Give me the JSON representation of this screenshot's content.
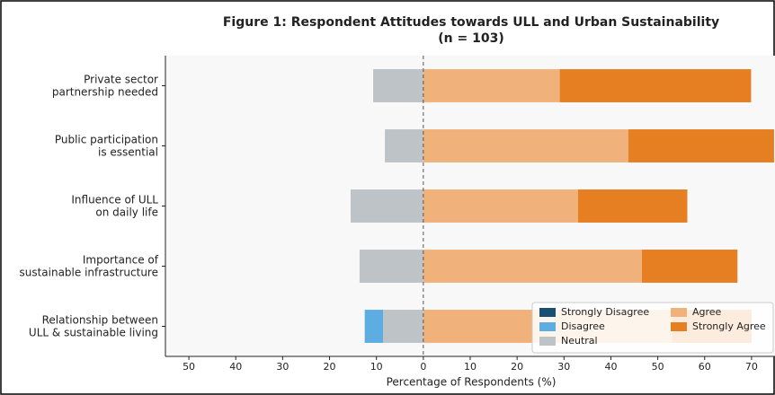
{
  "chart_data": {
    "type": "diverging_bar",
    "title": "Figure 1: Respondent Attitudes towards ULL and Urban Sustainability",
    "subtitle": "(n = 103)",
    "x_label": "Percentage of Respondents (%)",
    "categories": [
      [
        "Private sector",
        "partnership needed"
      ],
      [
        "Public participation",
        "is essential"
      ],
      [
        "Influence of ULL",
        "on daily life"
      ],
      [
        "Importance of",
        "sustainable infrastructure"
      ],
      [
        "Relationship between",
        "ULL & sustainable living"
      ]
    ],
    "series": [
      {
        "name": "Strongly Disagree",
        "color": "#1b4f72",
        "side": "left",
        "values": [
          0,
          0,
          0,
          0,
          0
        ]
      },
      {
        "name": "Disagree",
        "color": "#5dade2",
        "side": "left",
        "values": [
          0,
          0,
          0,
          0,
          3.9
        ]
      },
      {
        "name": "Neutral",
        "color": "#bdc3c7",
        "side": "left",
        "values": [
          10.7,
          8.2,
          15.5,
          13.6,
          8.6
        ]
      },
      {
        "name": "Agree",
        "color": "#f0b27a",
        "side": "right",
        "values": [
          29.1,
          43.7,
          33,
          46.6,
          53
        ]
      },
      {
        "name": "Strongly Agree",
        "color": "#e67e22",
        "side": "right",
        "values": [
          40.8,
          31.1,
          23.3,
          20.4,
          17
        ]
      }
    ],
    "xlim": [
      -55,
      75
    ],
    "xticks": [
      {
        "value": -50,
        "label": "50"
      },
      {
        "value": -40,
        "label": "40"
      },
      {
        "value": -30,
        "label": "30"
      },
      {
        "value": -20,
        "label": "20"
      },
      {
        "value": -10,
        "label": "10"
      },
      0,
      10,
      20,
      30,
      40,
      50,
      60,
      70
    ],
    "legend": "lower right"
  }
}
